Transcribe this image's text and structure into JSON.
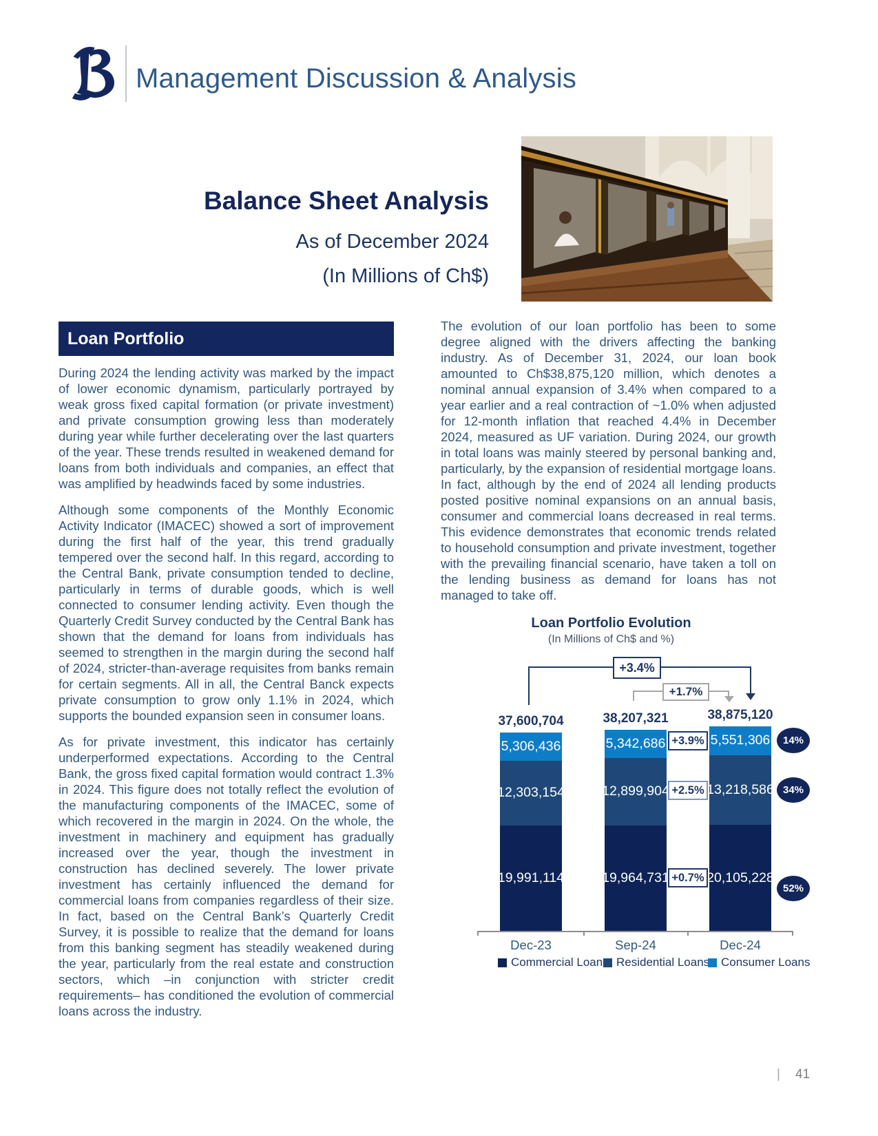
{
  "header": {
    "title": "Management Discussion & Analysis"
  },
  "title_block": {
    "title": "Balance Sheet Analysis",
    "subtitle1": "As of December 2024",
    "subtitle2": "(In Millions of Ch$)"
  },
  "left_column": {
    "section_header": "Loan Portfolio",
    "paragraphs": [
      "During 2024 the lending activity was marked by the impact of lower economic dynamism, particularly portrayed by weak gross fixed capital formation (or private investment) and private consumption growing less than moderately during year while further decelerating over the last quarters of the year. These trends resulted in weakened demand for loans from both individuals and companies, an effect that was amplified by headwinds faced by some industries.",
      "Although some components of the Monthly Economic Activity Indicator (IMACEC) showed a sort of improvement during the first half of the year, this trend gradually tempered over the second half. In this regard, according to the Central Bank, private consumption tended to decline, particularly in terms of durable goods, which is well connected to consumer lending activity. Even though the Quarterly Credit Survey conducted by the Central Bank has shown that the demand for loans from individuals has seemed to strengthen in the margin during the second half of 2024, stricter-than-average requisites from banks remain for certain segments. All in all, the Central Banck expects private consumption to grow only 1.1% in 2024, which supports the bounded expansion seen in consumer loans.",
      "As for private investment, this indicator has certainly underperformed expectations. According to the Central Bank, the gross fixed capital formation would contract 1.3% in 2024. This figure does not totally reflect the evolution of the manufacturing components of the IMACEC, some of which recovered in the margin in 2024. On the whole, the investment in machinery and equipment has gradually increased over the year, though the investment in construction has declined severely. The lower private investment has certainly influenced the demand for commercial loans from companies regardless of their size. In fact, based on the Central Bank’s Quarterly Credit Survey, it is possible to realize that the demand for loans from this banking segment has steadily weakened during the year, particularly from the real estate and construction sectors, which –in conjunction with stricter credit requirements– has conditioned the evolution of commercial loans across the industry."
    ]
  },
  "right_column": {
    "paragraphs": [
      "The evolution of our loan portfolio has been to some degree aligned with the drivers affecting the banking industry. As of December 31, 2024, our loan book amounted to Ch$38,875,120 million, which denotes a nominal annual expansion of 3.4% when compared to a year earlier and a real contraction of ~1.0% when adjusted for 12-month inflation that reached 4.4% in December 2024, measured as UF variation. During 2024, our growth in total loans was mainly steered by personal banking and, particularly, by the expansion of residential mortgage loans. In fact, although by the end of 2024 all lending products posted positive nominal expansions on an annual basis, consumer and commercial loans decreased in real terms. This evidence demonstrates that economic trends related to household consumption and private investment, together with the prevailing financial scenario, have taken a toll on the lending business as demand for loans has not managed to take off."
    ]
  },
  "chart_data": {
    "type": "bar",
    "stacked": true,
    "title": "Loan Portfolio Evolution",
    "subtitle": "(In Millions of Ch$ and %)",
    "categories": [
      "Dec-23",
      "Sep-24",
      "Dec-24"
    ],
    "totals": [
      37600704,
      38207321,
      38875120
    ],
    "series": [
      {
        "name": "Commercial Loans",
        "color": "#0d2357",
        "values": [
          19991114,
          19964731,
          20105228
        ],
        "qoq_change": "+0.7%",
        "share": "52%",
        "share_dy": 15
      },
      {
        "name": "Residential Loans",
        "color": "#1f4878",
        "values": [
          12303154,
          12899904,
          13218586
        ],
        "qoq_change": "+2.5%",
        "share": "34%",
        "share_dy": 0
      },
      {
        "name": "Consumer Loans",
        "color": "#0e7dc8",
        "values": [
          5306436,
          5342686,
          5551306
        ],
        "qoq_change": "+3.9%",
        "share": "14%",
        "share_dy": 0
      }
    ],
    "annotations": {
      "total_yoy_change": "+3.4%",
      "total_qoq_change": "+1.7%"
    },
    "legend_position": "bottom",
    "value_format": "comma-thousands"
  },
  "footer": {
    "divider": "|",
    "page_number": "41"
  }
}
